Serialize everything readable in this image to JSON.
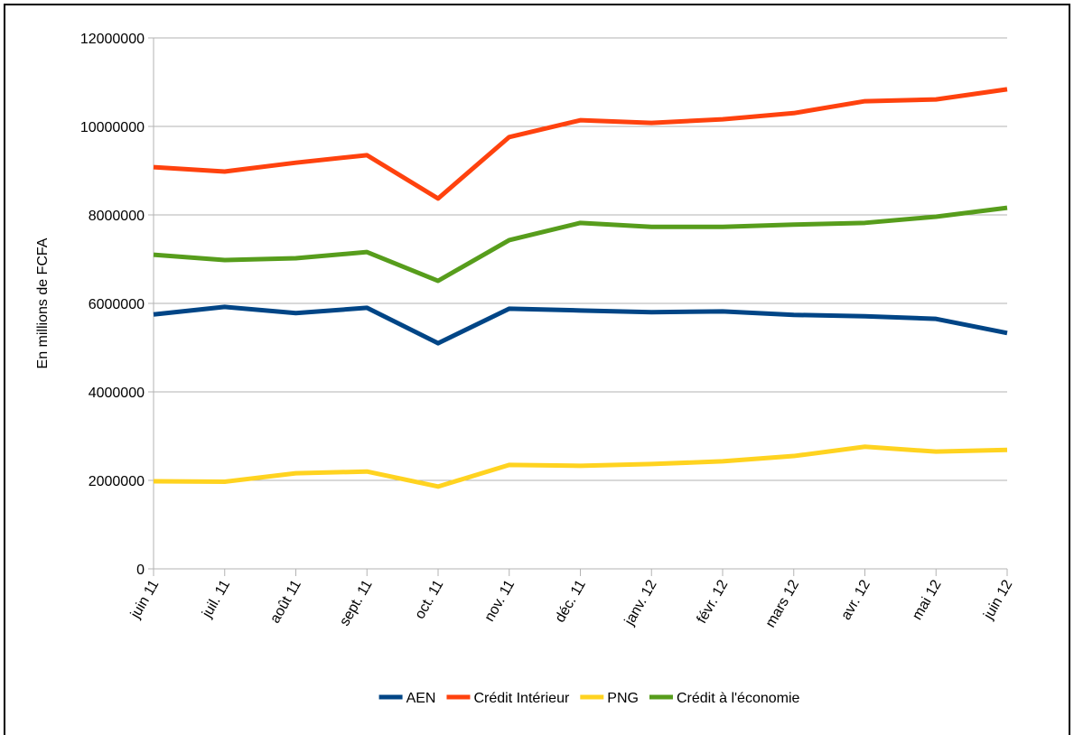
{
  "chart_data": {
    "type": "line",
    "y_label": "En millions de FCFA",
    "categories": [
      "juin 11",
      "juil. 11",
      "août 11",
      "sept. 11",
      "oct. 11",
      "nov. 11",
      "déc. 11",
      "janv. 12",
      "févr. 12",
      "mars 12",
      "avr. 12",
      "mai 12",
      "juin 12"
    ],
    "series": [
      {
        "name": "AEN",
        "color": "#004586",
        "values": [
          5750000,
          5920000,
          5780000,
          5900000,
          5100000,
          5880000,
          5840000,
          5800000,
          5820000,
          5740000,
          5710000,
          5650000,
          5330000
        ]
      },
      {
        "name": "Crédit Intérieur",
        "color": "#ff420e",
        "values": [
          9080000,
          8980000,
          9180000,
          9350000,
          8370000,
          9760000,
          10140000,
          10080000,
          10160000,
          10300000,
          10570000,
          10610000,
          10840000
        ]
      },
      {
        "name": "PNG",
        "color": "#ffd320",
        "values": [
          1980000,
          1970000,
          2160000,
          2200000,
          1860000,
          2350000,
          2330000,
          2370000,
          2430000,
          2550000,
          2760000,
          2650000,
          2690000
        ]
      },
      {
        "name": "Crédit à l'économie",
        "color": "#579d1c",
        "values": [
          7100000,
          6980000,
          7020000,
          7160000,
          6510000,
          7430000,
          7820000,
          7730000,
          7730000,
          7780000,
          7820000,
          7960000,
          8160000
        ]
      }
    ],
    "ylim": [
      0,
      12000000
    ],
    "yticks": [
      0,
      2000000,
      4000000,
      6000000,
      8000000,
      10000000,
      12000000
    ],
    "grid": true,
    "legend": "bottom"
  }
}
